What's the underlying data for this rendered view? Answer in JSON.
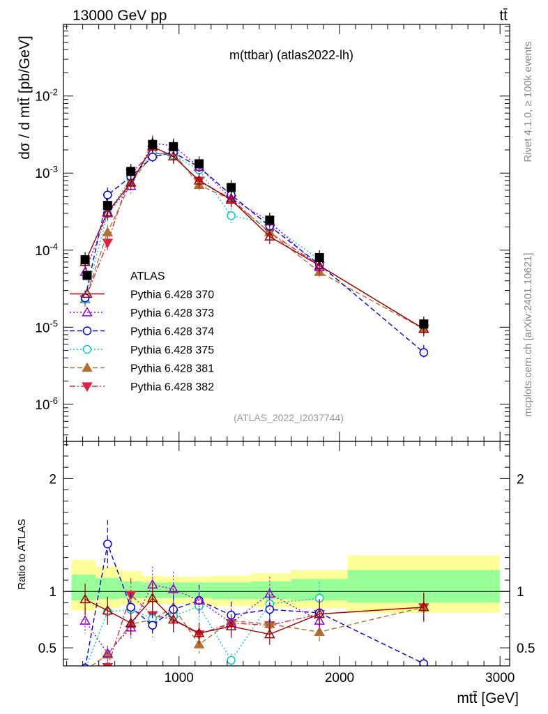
{
  "header": {
    "beam": "13000 GeV pp",
    "process": "tt̄",
    "plot_title": "m(ttbar) (atlas2022-lh)",
    "analysis_id": "(ATLAS_2022_I2037744)",
    "side_rivet": "Rivet 4.1.0, ≥ 100k events",
    "side_mcplots": "mcplots.cern.ch [arXiv:2401.10621]"
  },
  "chart_data": [
    {
      "panel": "main",
      "type": "scatter",
      "yscale": "log",
      "xlim": [
        280,
        3060
      ],
      "ylim": [
        3.3e-07,
        0.085
      ],
      "ylabel": "dσ / d mtt̄ [pb/GeV]",
      "y_ticks": [
        {
          "value": 1e-06,
          "label": "10^-6"
        },
        {
          "value": 1e-05,
          "label": "10^-5"
        },
        {
          "value": 0.0001,
          "label": "10^-4"
        },
        {
          "value": 0.001,
          "label": "10^-3"
        },
        {
          "value": 0.01,
          "label": "10^-2"
        }
      ],
      "legend": "middle-left",
      "series": [
        {
          "name": "ATLAS",
          "color": "#000000",
          "marker": "square",
          "line": "none",
          "x": [
            415,
            555,
            700,
            835,
            965,
            1125,
            1325,
            1565,
            1875,
            2525
          ],
          "y": [
            7.5e-05,
            0.00038,
            0.00105,
            0.00235,
            0.0022,
            0.00132,
            0.00065,
            0.000245,
            8e-05,
            1.1e-05
          ]
        },
        {
          "name": "Pythia 6.428 370",
          "color": "#990000",
          "marker": "triangle-open",
          "line": "solid",
          "x": [
            415,
            555,
            700,
            835,
            965,
            1125,
            1325,
            1565,
            1875,
            2525
          ],
          "y": [
            7e-05,
            0.00031,
            0.00075,
            0.0022,
            0.00165,
            0.0008,
            0.00045,
            0.00015,
            6.3e-05,
            9.5e-06
          ]
        },
        {
          "name": "Pythia 6.428 373",
          "color": "#9900cc",
          "marker": "triangle-open",
          "line": "dotted",
          "x": [
            415,
            555,
            700,
            835,
            965,
            1125,
            1325,
            1565,
            1875
          ],
          "y": [
            5.2e-05,
            0.0003,
            0.00068,
            0.00245,
            0.00225,
            0.0012,
            0.00047,
            0.000235,
            6e-05
          ]
        },
        {
          "name": "Pythia 6.428 374",
          "color": "#0000dd",
          "marker": "circle-open",
          "line": "dashed",
          "x": [
            415,
            555,
            700,
            835,
            965,
            1125,
            1325,
            1565,
            1875,
            2525
          ],
          "y": [
            2.4e-05,
            0.00052,
            0.0009,
            0.00162,
            0.00185,
            0.0012,
            0.00052,
            0.000205,
            6.5e-05,
            4.7e-06
          ]
        },
        {
          "name": "Pythia 6.428 375",
          "color": "#00ccbb",
          "marker": "circle-open",
          "line": "dotted",
          "x": [
            415,
            555,
            700,
            835,
            965,
            1125,
            1325,
            1565,
            1875
          ],
          "y": [
            2.3e-05,
            0.0003,
            0.00085,
            0.0018,
            0.0017,
            0.0011,
            0.00028,
            0.00022,
            7.5e-05
          ]
        },
        {
          "name": "Pythia 6.428 381",
          "color": "#b07030",
          "marker": "triangle-up-filled",
          "line": "dashed",
          "x": [
            415,
            555,
            700,
            835,
            965,
            1125,
            1325,
            1565,
            1875,
            2525
          ],
          "y": [
            2.3e-05,
            0.00017,
            0.00075,
            0.00175,
            0.00185,
            0.0007,
            0.00045,
            0.00017,
            5.2e-05,
            9.5e-06
          ]
        },
        {
          "name": "Pythia 6.428 382",
          "color": "#dd2244",
          "marker": "triangle-down-filled",
          "line": "dashdot",
          "x": [
            415,
            555,
            700,
            835,
            965,
            1125,
            1325,
            1565,
            1875,
            2525
          ],
          "y": [
            2.3e-05,
            0.000125,
            0.001,
            0.00185,
            0.00165,
            0.0008,
            0.00046,
            0.00017,
            6.3e-05,
            9.5e-06
          ]
        }
      ]
    },
    {
      "panel": "ratio",
      "type": "scatter",
      "yscale": "linear",
      "xlim": [
        280,
        3060
      ],
      "ylim": [
        0.34,
        2.33
      ],
      "ylabel": "Ratio to ATLAS",
      "xlabel": "mtt̄ [GeV]",
      "y_ticks": [
        {
          "value": 0.5,
          "label": "0.5"
        },
        {
          "value": 1,
          "label": "1"
        },
        {
          "value": 2,
          "label": "2"
        }
      ],
      "x_ticks": [
        {
          "value": 1000,
          "label": "1000"
        },
        {
          "value": 2000,
          "label": "2000"
        },
        {
          "value": 3000,
          "label": "3000"
        }
      ],
      "bands": {
        "edges": [
          330,
          480,
          630,
          770,
          900,
          1040,
          1200,
          1450,
          1700,
          2050,
          3000
        ],
        "yellow": [
          [
            0.83,
            1.28
          ],
          [
            0.85,
            1.22
          ],
          [
            0.88,
            1.18
          ],
          [
            0.89,
            1.14
          ],
          [
            0.89,
            1.13
          ],
          [
            0.88,
            1.13
          ],
          [
            0.87,
            1.14
          ],
          [
            0.86,
            1.16
          ],
          [
            0.85,
            1.19
          ],
          [
            0.81,
            1.32
          ]
        ],
        "green": [
          [
            0.92,
            1.15
          ],
          [
            0.93,
            1.12
          ],
          [
            0.94,
            1.09
          ],
          [
            0.94,
            1.08
          ],
          [
            0.94,
            1.08
          ],
          [
            0.94,
            1.08
          ],
          [
            0.93,
            1.08
          ],
          [
            0.93,
            1.09
          ],
          [
            0.92,
            1.11
          ],
          [
            0.9,
            1.19
          ]
        ]
      },
      "series": [
        {
          "name": "Pythia 6.428 370",
          "x": [
            415,
            555,
            700,
            835,
            965,
            1125,
            1325,
            1565,
            1875,
            2525
          ],
          "y": [
            0.93,
            0.83,
            0.72,
            0.94,
            0.75,
            0.63,
            0.69,
            0.62,
            0.8,
            0.86
          ]
        },
        {
          "name": "Pythia 6.428 373",
          "x": [
            415,
            555,
            700,
            835,
            965,
            1125,
            1325,
            1565,
            1875
          ],
          "y": [
            0.74,
            0.45,
            0.68,
            1.06,
            1.02,
            0.92,
            0.72,
            0.98,
            0.74
          ]
        },
        {
          "name": "Pythia 6.428 374",
          "x": [
            415,
            555,
            700,
            835,
            965,
            1125,
            1325,
            1565,
            1875,
            2525
          ],
          "y": [
            0.32,
            1.42,
            0.86,
            0.7,
            0.84,
            0.92,
            0.79,
            0.84,
            0.81,
            0.36
          ]
        },
        {
          "name": "Pythia 6.428 375",
          "x": [
            415,
            555,
            700,
            835,
            965,
            1125,
            1325,
            1565,
            1875
          ],
          "y": [
            0.31,
            0.82,
            0.84,
            0.76,
            0.78,
            0.87,
            0.39,
            0.89,
            0.94
          ]
        },
        {
          "name": "Pythia 6.428 381",
          "x": [
            415,
            555,
            700,
            835,
            965,
            1125,
            1325,
            1565,
            1875,
            2525
          ],
          "y": [
            0.3,
            0.44,
            0.71,
            0.75,
            0.86,
            0.53,
            0.74,
            0.71,
            0.64,
            0.86
          ]
        },
        {
          "name": "Pythia 6.428 382",
          "x": [
            415,
            555,
            700,
            835,
            965,
            1125,
            1325,
            1565,
            1875,
            2525
          ],
          "y": [
            0.3,
            0.33,
            0.97,
            0.79,
            0.75,
            0.62,
            0.72,
            0.7,
            0.8,
            0.86
          ]
        }
      ]
    }
  ]
}
